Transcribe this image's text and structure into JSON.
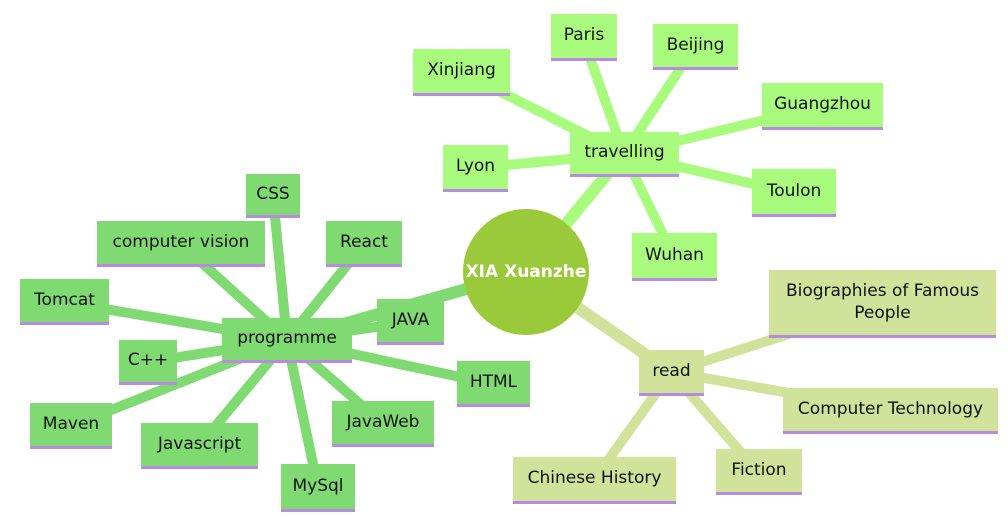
{
  "root": {
    "label": "XIA Xuanzhe"
  },
  "branches": {
    "programme": {
      "label": "programme",
      "color": "#7fda72",
      "children": [
        "CSS",
        "computer vision",
        "React",
        "Tomcat",
        "JAVA",
        "C++",
        "HTML",
        "Maven",
        "Javascript",
        "JavaWeb",
        "MySql"
      ]
    },
    "travelling": {
      "label": "travelling",
      "color": "#a9fb7d",
      "children": [
        "Paris",
        "Beijing",
        "Xinjiang",
        "Guangzhou",
        "Lyon",
        "Toulon",
        "Wuhan"
      ]
    },
    "read": {
      "label": "read",
      "color": "#d1e29a",
      "children": [
        "Biographies of Famous People",
        "Computer Technology",
        "Chinese History",
        "Fiction"
      ]
    }
  },
  "colors": {
    "root": "#9ac93a",
    "underline": "#b98be0"
  }
}
